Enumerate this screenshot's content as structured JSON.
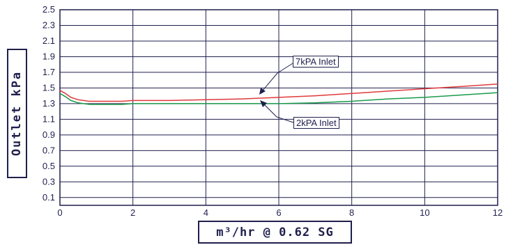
{
  "chart_data": {
    "type": "line",
    "title": "",
    "xlabel": "m³/hr @ 0.62 SG",
    "ylabel": "Outlet kPa",
    "xlim": [
      0,
      12
    ],
    "ylim": [
      0,
      2.5
    ],
    "x_ticks": [
      "0",
      "2",
      "4",
      "6",
      "8",
      "10",
      "12"
    ],
    "y_ticks": [
      "0.1",
      "0.3",
      "0.5",
      "0.7",
      "0.9",
      "1.1",
      "1.3",
      "1.5",
      "1.7",
      "1.9",
      "2.1",
      "2.3",
      "2.5"
    ],
    "grid": true,
    "series": [
      {
        "name": "7kPA Inlet",
        "color": "#e03a3a",
        "x": [
          0,
          0.15,
          0.3,
          0.5,
          0.8,
          1.2,
          1.7,
          2,
          3,
          4,
          5,
          6,
          7,
          8,
          9,
          10,
          11,
          12
        ],
        "y": [
          1.47,
          1.43,
          1.38,
          1.35,
          1.33,
          1.33,
          1.33,
          1.34,
          1.34,
          1.35,
          1.36,
          1.38,
          1.4,
          1.43,
          1.46,
          1.49,
          1.52,
          1.55
        ]
      },
      {
        "name": "2kPA Inlet",
        "color": "#1a9a4a",
        "x": [
          0,
          0.15,
          0.3,
          0.5,
          0.8,
          1.2,
          1.7,
          2,
          3,
          4,
          5,
          6,
          7,
          8,
          9,
          10,
          11,
          12
        ],
        "y": [
          1.43,
          1.39,
          1.34,
          1.31,
          1.29,
          1.29,
          1.29,
          1.3,
          1.3,
          1.3,
          1.3,
          1.3,
          1.31,
          1.33,
          1.36,
          1.38,
          1.41,
          1.44
        ]
      }
    ]
  }
}
